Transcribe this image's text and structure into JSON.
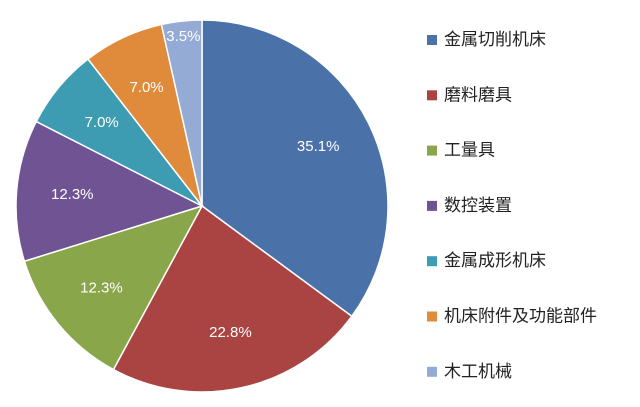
{
  "chart_data": {
    "type": "pie",
    "categories": [
      "金属切削机床",
      "磨料磨具",
      "工量具",
      "数控装置",
      "金属成形机床",
      "机床附件及功能部件",
      "木工机械"
    ],
    "values": [
      35.1,
      22.8,
      12.3,
      12.3,
      7.0,
      7.0,
      3.5
    ],
    "value_labels": [
      "35.1%",
      "22.8%",
      "12.3%",
      "12.3%",
      "7.0%",
      "7.0%",
      "3.5%"
    ],
    "colors": [
      "#4a72a8",
      "#a94442",
      "#89a64a",
      "#6f5393",
      "#3d9bb2",
      "#e08a3c",
      "#94abd6"
    ],
    "legend": "right"
  }
}
